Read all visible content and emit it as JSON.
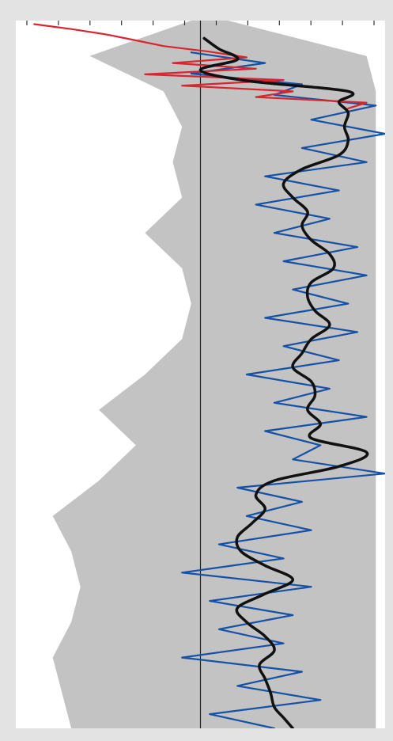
{
  "chart_data": {
    "type": "line",
    "orientation": "vertical",
    "title": "",
    "xlabel": "",
    "ylabel": "",
    "grid": false,
    "legend": "none",
    "colors": {
      "envelope": "#b9b9b9",
      "recent_series": "#d9252d",
      "main_series": "#1552a7",
      "smooth_curve": "#111111",
      "zero_line": "#222222",
      "ticks": "#333333"
    },
    "x_ticks_count": 12,
    "xlim": [
      -1,
      1
    ],
    "ylim": [
      0,
      1
    ],
    "reference_line": {
      "x": 0
    },
    "smooth_curve": {
      "y": [
        0.025,
        0.04,
        0.055,
        0.07,
        0.085,
        0.1,
        0.115,
        0.13,
        0.15,
        0.17,
        0.19,
        0.21,
        0.23,
        0.25,
        0.27,
        0.29,
        0.31,
        0.33,
        0.35,
        0.37,
        0.39,
        0.41,
        0.43,
        0.45,
        0.47,
        0.49,
        0.51,
        0.53,
        0.55,
        0.57,
        0.59,
        0.61,
        0.63,
        0.65,
        0.67,
        0.69,
        0.71,
        0.73,
        0.75,
        0.77,
        0.79,
        0.81,
        0.83,
        0.85,
        0.87,
        0.89,
        0.91,
        0.93,
        0.95,
        0.97,
        0.985,
        1.0
      ],
      "x": [
        0.02,
        0.1,
        0.2,
        0.0,
        0.25,
        0.8,
        0.75,
        0.8,
        0.78,
        0.8,
        0.75,
        0.55,
        0.45,
        0.5,
        0.58,
        0.55,
        0.6,
        0.7,
        0.72,
        0.6,
        0.58,
        0.62,
        0.7,
        0.6,
        0.55,
        0.5,
        0.6,
        0.62,
        0.58,
        0.65,
        0.6,
        0.9,
        0.75,
        0.4,
        0.3,
        0.35,
        0.28,
        0.2,
        0.22,
        0.35,
        0.5,
        0.35,
        0.2,
        0.25,
        0.35,
        0.4,
        0.32,
        0.35,
        0.38,
        0.4,
        0.45,
        0.5
      ]
    },
    "main_series": {
      "y": [
        0.045,
        0.06,
        0.075,
        0.09,
        0.105,
        0.12,
        0.14,
        0.16,
        0.18,
        0.2,
        0.22,
        0.24,
        0.26,
        0.28,
        0.3,
        0.32,
        0.34,
        0.36,
        0.38,
        0.4,
        0.42,
        0.44,
        0.46,
        0.48,
        0.5,
        0.52,
        0.54,
        0.56,
        0.58,
        0.6,
        0.62,
        0.64,
        0.66,
        0.68,
        0.7,
        0.72,
        0.74,
        0.76,
        0.78,
        0.8,
        0.82,
        0.84,
        0.86,
        0.88,
        0.9,
        0.92,
        0.94,
        0.96,
        0.98,
        1.0
      ],
      "x": [
        -0.05,
        0.35,
        -0.05,
        0.55,
        0.4,
        0.95,
        0.6,
        1.0,
        0.55,
        0.9,
        0.35,
        0.75,
        0.3,
        0.7,
        0.4,
        0.85,
        0.45,
        0.9,
        0.5,
        0.8,
        0.35,
        0.85,
        0.45,
        0.75,
        0.25,
        0.7,
        0.4,
        0.9,
        0.35,
        0.65,
        0.5,
        1.0,
        0.2,
        0.55,
        0.25,
        0.6,
        0.1,
        0.45,
        -0.1,
        0.6,
        0.05,
        0.5,
        0.1,
        0.45,
        -0.1,
        0.55,
        0.2,
        0.65,
        0.05,
        0.4
      ]
    },
    "recent_series": {
      "y": [
        0.005,
        0.012,
        0.02,
        0.028,
        0.036,
        0.044,
        0.052,
        0.06,
        0.068,
        0.076,
        0.084,
        0.092,
        0.1,
        0.108,
        0.116,
        0.124
      ],
      "x": [
        -0.9,
        -0.7,
        -0.5,
        -0.35,
        -0.2,
        0.05,
        0.25,
        -0.15,
        0.3,
        -0.3,
        0.45,
        -0.1,
        0.5,
        0.3,
        0.9,
        0.8
      ]
    },
    "envelope": {
      "y": [
        0.0,
        0.05,
        0.1,
        0.15,
        0.2,
        0.25,
        0.3,
        0.35,
        0.4,
        0.45,
        0.5,
        0.55,
        0.6,
        0.65,
        0.7,
        0.75,
        0.8,
        0.85,
        0.9,
        0.95,
        1.0
      ],
      "left": [
        -0.05,
        -0.6,
        -0.2,
        -0.1,
        -0.15,
        -0.1,
        -0.3,
        -0.1,
        -0.05,
        -0.1,
        -0.3,
        -0.55,
        -0.35,
        -0.55,
        -0.8,
        -0.7,
        -0.65,
        -0.7,
        -0.8,
        -0.75,
        -0.7
      ],
      "right": [
        0.15,
        0.9,
        0.95,
        0.95,
        0.95,
        0.95,
        0.95,
        0.95,
        0.95,
        0.95,
        0.95,
        0.95,
        0.95,
        0.95,
        0.95,
        0.95,
        0.95,
        0.95,
        0.95,
        0.95,
        0.95
      ]
    }
  }
}
